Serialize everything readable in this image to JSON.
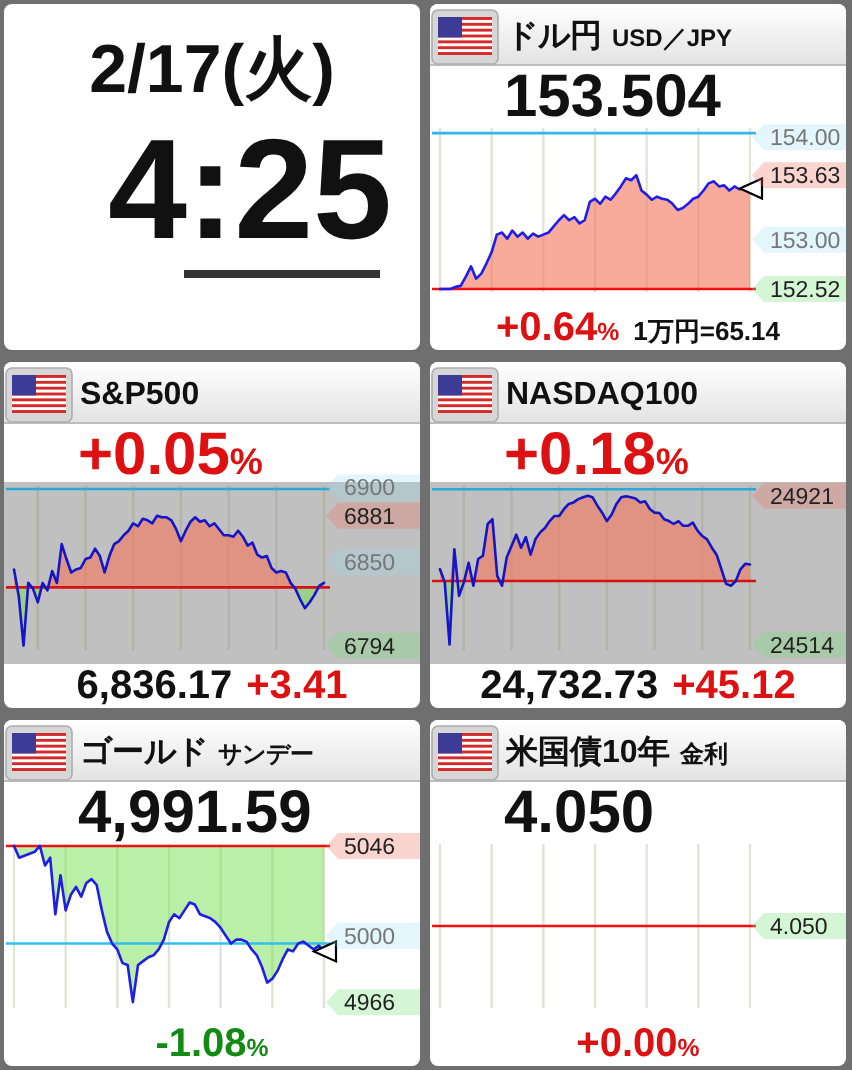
{
  "chart_data": [
    {
      "type": "other",
      "title": "2/17(火)",
      "subtitle": "4:25"
    },
    {
      "type": "line",
      "title": "ドル円",
      "subtitle": "USD／JPY",
      "annotations": [
        "153.504",
        "+0.64%",
        "1万円=65.14"
      ],
      "categories": [
        null,
        null,
        null,
        null,
        null,
        null,
        null,
        null,
        null,
        null,
        null,
        null,
        null,
        null,
        null,
        null,
        null,
        null,
        null,
        null,
        null,
        null,
        null,
        null,
        null,
        null,
        null,
        null,
        null,
        null,
        null,
        null,
        null,
        null,
        null,
        null,
        null,
        null,
        null,
        null,
        null,
        null,
        null,
        null,
        null,
        null,
        null,
        null,
        null,
        null,
        null,
        null,
        null,
        null,
        null,
        null,
        null,
        null,
        null,
        null,
        null
      ],
      "series": [
        {
          "color": "#1e1ee6",
          "values": [
            152.52,
            152.52,
            152.52,
            152.54,
            152.55,
            152.64,
            152.74,
            152.62,
            152.67,
            152.77,
            152.88,
            153.05,
            153.07,
            153.01,
            153.09,
            153.03,
            153.07,
            153.01,
            153.06,
            153.03,
            153.05,
            153.07,
            153.13,
            153.19,
            153.24,
            153.19,
            153.22,
            153.16,
            153.19,
            153.37,
            153.4,
            153.35,
            153.42,
            153.39,
            153.45,
            153.52,
            153.6,
            153.58,
            153.63,
            153.48,
            153.44,
            153.39,
            153.42,
            153.4,
            153.39,
            153.35,
            153.29,
            153.31,
            153.35,
            153.4,
            153.42,
            153.48,
            153.55,
            153.57,
            153.52,
            153.53,
            153.48,
            153.52,
            153.49,
            153.52,
            153.5
          ],
          "lower": [
            152.52,
            152.52,
            152.52,
            152.52,
            152.52,
            152.52,
            152.52,
            152.52,
            152.52,
            152.52,
            152.52,
            152.52,
            152.52,
            152.52,
            152.52,
            152.52,
            152.52,
            152.52,
            152.52,
            152.52,
            152.52,
            152.52,
            152.52,
            152.52,
            152.52,
            152.52,
            152.52,
            152.52,
            152.52,
            152.52,
            152.52,
            152.52,
            152.52,
            152.52,
            152.52,
            152.52,
            152.52,
            152.52,
            152.52,
            152.52,
            152.52,
            152.52,
            152.52,
            152.52,
            152.52,
            152.52,
            152.52,
            152.52,
            152.52,
            152.52,
            152.52,
            152.52,
            152.52,
            152.52,
            152.52,
            152.52,
            152.52,
            152.52,
            152.52,
            152.52,
            152.52
          ],
          "upper": [
            152.52,
            152.52,
            152.52,
            152.54,
            152.55,
            152.64,
            152.74,
            152.62,
            152.67,
            152.77,
            152.88,
            153.05,
            153.07,
            153.01,
            153.09,
            153.03,
            153.07,
            153.01,
            153.06,
            153.03,
            153.05,
            153.07,
            153.13,
            153.19,
            153.24,
            153.19,
            153.22,
            153.16,
            153.19,
            153.37,
            153.4,
            153.35,
            153.42,
            153.39,
            153.45,
            153.52,
            153.6,
            153.58,
            153.63,
            153.48,
            153.44,
            153.39,
            153.42,
            153.4,
            153.39,
            153.35,
            153.29,
            153.31,
            153.35,
            153.4,
            153.42,
            153.48,
            153.55,
            153.57,
            153.52,
            153.53,
            153.48,
            153.52,
            153.49,
            153.52,
            153.5
          ]
        },
        {
          "type": "scatter",
          "marker": "triangle",
          "color": "#000000",
          "values": [
            null,
            null,
            null,
            null,
            null,
            null,
            null,
            null,
            null,
            null,
            null,
            null,
            null,
            null,
            null,
            null,
            null,
            null,
            null,
            null,
            null,
            null,
            null,
            null,
            null,
            null,
            null,
            null,
            null,
            null,
            null,
            null,
            null,
            null,
            null,
            null,
            null,
            null,
            null,
            null,
            null,
            null,
            null,
            null,
            null,
            null,
            null,
            null,
            null,
            null,
            null,
            null,
            null,
            null,
            null,
            null,
            null,
            null,
            null,
            null,
            153.5
          ]
        }
      ],
      "ylim": [
        152.49,
        154.09
      ],
      "yticks": [
        {
          "value": 154,
          "label": "154.00"
        },
        153.63,
        {
          "value": 153,
          "label": "153.00"
        },
        152.52
      ],
      "ref_lines": [
        {
          "axis": "y",
          "value": 152.52,
          "color": "#f01010"
        },
        {
          "axis": "y",
          "value": 154.04,
          "color": "#30b8e8"
        }
      ],
      "grid": "x"
    },
    {
      "type": "line",
      "title": "S&P500",
      "annotations": [
        "+0.05%",
        "6,836.17",
        "+3.41"
      ],
      "categories": [
        null,
        null,
        null,
        null,
        null,
        null,
        null,
        null,
        null,
        null,
        null,
        null,
        null,
        null,
        null,
        null,
        null,
        null,
        null,
        null,
        null,
        null,
        null,
        null,
        null,
        null,
        null,
        null,
        null,
        null,
        null,
        null,
        null,
        null,
        null,
        null,
        null,
        null,
        null,
        null,
        null,
        null,
        null,
        null,
        null,
        null,
        null,
        null,
        null,
        null,
        null,
        null,
        null,
        null,
        null,
        null,
        null,
        null,
        null,
        null,
        null,
        null,
        null,
        null,
        null,
        null
      ],
      "series": [
        {
          "color": "#1515c8",
          "values": [
            6845,
            6827,
            6794,
            6836,
            6832,
            6823,
            6836,
            6831,
            6844,
            6836,
            6862,
            6852,
            6843,
            6845,
            6846,
            6852,
            6853,
            6859,
            6854,
            6843,
            6854,
            6862,
            6864,
            6868,
            6871,
            6876,
            6874,
            6879,
            6878,
            6876,
            6881,
            6880,
            6880,
            6878,
            6872,
            6864,
            6871,
            6877,
            6880,
            6877,
            6878,
            6874,
            6876,
            6872,
            6868,
            6868,
            6867,
            6871,
            6867,
            6861,
            6863,
            6855,
            6853,
            6854,
            6846,
            6843,
            6844,
            6843,
            6836,
            6832,
            6825,
            6819,
            6823,
            6828,
            6834,
            6836
          ],
          "lower": [
            6833,
            6827,
            6794,
            6833,
            6832,
            6823,
            6833,
            6831,
            6833,
            6833,
            6833,
            6833,
            6833,
            6833,
            6833,
            6833,
            6833,
            6833,
            6833,
            6833,
            6833,
            6833,
            6833,
            6833,
            6833,
            6833,
            6833,
            6833,
            6833,
            6833,
            6833,
            6833,
            6833,
            6833,
            6833,
            6833,
            6833,
            6833,
            6833,
            6833,
            6833,
            6833,
            6833,
            6833,
            6833,
            6833,
            6833,
            6833,
            6833,
            6833,
            6833,
            6833,
            6833,
            6833,
            6833,
            6833,
            6833,
            6833,
            6833,
            6832,
            6825,
            6819,
            6823,
            6828,
            6833,
            6833
          ],
          "upper": [
            6845,
            6833,
            6833,
            6836,
            6833,
            6833,
            6836,
            6833,
            6844,
            6836,
            6862,
            6852,
            6843,
            6845,
            6846,
            6852,
            6853,
            6859,
            6854,
            6843,
            6854,
            6862,
            6864,
            6868,
            6871,
            6876,
            6874,
            6879,
            6878,
            6876,
            6881,
            6880,
            6880,
            6878,
            6872,
            6864,
            6871,
            6877,
            6880,
            6877,
            6878,
            6874,
            6876,
            6872,
            6868,
            6868,
            6867,
            6871,
            6867,
            6861,
            6863,
            6855,
            6853,
            6854,
            6846,
            6843,
            6844,
            6843,
            6836,
            6833,
            6833,
            6833,
            6833,
            6833,
            6834,
            6836
          ]
        }
      ],
      "ylim": [
        6791,
        6901
      ],
      "yticks": [
        6900,
        6881,
        6850,
        6794
      ],
      "ref_lines": [
        {
          "axis": "y",
          "value": 6833,
          "color": "#d81010"
        },
        {
          "axis": "y",
          "value": 6899,
          "color": "#2aa8d8"
        }
      ],
      "grid": "x"
    },
    {
      "type": "line",
      "title": "NASDAQ100",
      "annotations": [
        "+0.18%",
        "24,732.73",
        "+45.12"
      ],
      "categories": [
        null,
        null,
        null,
        null,
        null,
        null,
        null,
        null,
        null,
        null,
        null,
        null,
        null,
        null,
        null,
        null,
        null,
        null,
        null,
        null,
        null,
        null,
        null,
        null,
        null,
        null,
        null,
        null,
        null,
        null,
        null,
        null,
        null,
        null,
        null,
        null,
        null,
        null,
        null,
        null,
        null,
        null,
        null,
        null,
        null,
        null,
        null,
        null,
        null,
        null,
        null,
        null,
        null,
        null,
        null,
        null,
        null,
        null,
        null,
        null,
        null,
        null,
        null,
        null,
        null,
        null
      ],
      "series": [
        {
          "color": "#1515c8",
          "values": [
            24720,
            24684,
            24514,
            24775,
            24647,
            24684,
            24738,
            24675,
            24748,
            24757,
            24844,
            24857,
            24702,
            24675,
            24753,
            24784,
            24815,
            24779,
            24808,
            24760,
            24802,
            24821,
            24833,
            24852,
            24866,
            24866,
            24885,
            24899,
            24903,
            24912,
            24917,
            24921,
            24917,
            24894,
            24875,
            24852,
            24870,
            24899,
            24917,
            24920,
            24917,
            24914,
            24903,
            24906,
            24885,
            24875,
            24874,
            24857,
            24852,
            24844,
            24852,
            24839,
            24839,
            24848,
            24826,
            24811,
            24802,
            24779,
            24760,
            24720,
            24680,
            24675,
            24687,
            24720,
            24735,
            24733
          ],
          "lower": [
            24688,
            24684,
            24514,
            24688,
            24647,
            24684,
            24688,
            24675,
            24688,
            24688,
            24688,
            24688,
            24688,
            24675,
            24688,
            24688,
            24688,
            24688,
            24688,
            24688,
            24688,
            24688,
            24688,
            24688,
            24688,
            24688,
            24688,
            24688,
            24688,
            24688,
            24688,
            24688,
            24688,
            24688,
            24688,
            24688,
            24688,
            24688,
            24688,
            24688,
            24688,
            24688,
            24688,
            24688,
            24688,
            24688,
            24688,
            24688,
            24688,
            24688,
            24688,
            24688,
            24688,
            24688,
            24688,
            24688,
            24688,
            24688,
            24688,
            24688,
            24680,
            24675,
            24687,
            24688,
            24688,
            24688
          ],
          "upper": [
            24720,
            24688,
            24688,
            24775,
            24688,
            24688,
            24738,
            24688,
            24748,
            24757,
            24844,
            24857,
            24702,
            24688,
            24753,
            24784,
            24815,
            24779,
            24808,
            24760,
            24802,
            24821,
            24833,
            24852,
            24866,
            24866,
            24885,
            24899,
            24903,
            24912,
            24917,
            24921,
            24917,
            24894,
            24875,
            24852,
            24870,
            24899,
            24917,
            24920,
            24917,
            24914,
            24903,
            24906,
            24885,
            24875,
            24874,
            24857,
            24852,
            24844,
            24852,
            24839,
            24839,
            24848,
            24826,
            24811,
            24802,
            24779,
            24760,
            24720,
            24688,
            24688,
            24688,
            24720,
            24735,
            24733
          ]
        }
      ],
      "ylim": [
        24499,
        24948
      ],
      "yticks": [
        24921,
        24514
      ],
      "ref_lines": [
        {
          "axis": "y",
          "value": 24688,
          "color": "#d81010"
        },
        {
          "axis": "y",
          "value": 24939,
          "color": "#2aa8d8"
        }
      ],
      "grid": "x"
    },
    {
      "type": "line",
      "title": "ゴールド",
      "subtitle": "サンデー",
      "annotations": [
        "4,991.59",
        "-1.08%"
      ],
      "categories": [
        null,
        null,
        null,
        null,
        null,
        null,
        null,
        null,
        null,
        null,
        null,
        null,
        null,
        null,
        null,
        null,
        null,
        null,
        null,
        null,
        null,
        null,
        null,
        null,
        null,
        null,
        null,
        null,
        null,
        null,
        null,
        null,
        null,
        null,
        null,
        null,
        null,
        null,
        null,
        null,
        null,
        null,
        null,
        null,
        null,
        null,
        null,
        null,
        null,
        null,
        null,
        null,
        null,
        null,
        null,
        null,
        null,
        null,
        null,
        null,
        null
      ],
      "series": [
        {
          "color": "#1e1ee6",
          "values": [
            5046,
            5040,
            5041,
            5042,
            5043,
            5046,
            5036,
            5040,
            5011,
            5031,
            5013,
            5021,
            5025,
            5020,
            5027,
            5029,
            5026,
            5013,
            5002,
            4996,
            4993,
            4986,
            4985,
            4966,
            4985,
            4987,
            4989,
            4990,
            4993,
            4998,
            5007,
            5011,
            5009,
            5013,
            5017,
            5016,
            5011,
            5010,
            5009,
            5007,
            5004,
            5000,
            4996,
            4998,
            4998,
            4997,
            4993,
            4990,
            4984,
            4976,
            4978,
            4982,
            4988,
            4993,
            4992,
            4996,
            4997,
            4995,
            4993,
            4995,
            4992
          ],
          "lower": [
            5046,
            5040,
            5041,
            5042,
            5043,
            5046,
            5036,
            5040,
            5011,
            5031,
            5013,
            5021,
            5025,
            5020,
            5027,
            5029,
            5026,
            5013,
            5002,
            4996,
            4993,
            4986,
            4985,
            4966,
            4985,
            4987,
            4989,
            4990,
            4993,
            4998,
            5007,
            5011,
            5009,
            5013,
            5017,
            5016,
            5011,
            5010,
            5009,
            5007,
            5004,
            5000,
            4996,
            4998,
            4998,
            4997,
            4993,
            4990,
            4984,
            4976,
            4978,
            4982,
            4988,
            4993,
            4992,
            4996,
            4997,
            4995,
            4993,
            4995,
            4992
          ],
          "upper": [
            5046,
            5046,
            5046,
            5046,
            5046,
            5046,
            5046,
            5046,
            5046,
            5046,
            5046,
            5046,
            5046,
            5046,
            5046,
            5046,
            5046,
            5046,
            5046,
            5046,
            5046,
            5046,
            5046,
            5046,
            5046,
            5046,
            5046,
            5046,
            5046,
            5046,
            5046,
            5046,
            5046,
            5046,
            5046,
            5046,
            5046,
            5046,
            5046,
            5046,
            5046,
            5046,
            5046,
            5046,
            5046,
            5046,
            5046,
            5046,
            5046,
            5046,
            5046,
            5046,
            5046,
            5046,
            5046,
            5046,
            5046,
            5046,
            5046,
            5046,
            5046
          ]
        },
        {
          "type": "scatter",
          "marker": "triangle",
          "color": "#000000",
          "values": [
            null,
            null,
            null,
            null,
            null,
            null,
            null,
            null,
            null,
            null,
            null,
            null,
            null,
            null,
            null,
            null,
            null,
            null,
            null,
            null,
            null,
            null,
            null,
            null,
            null,
            null,
            null,
            null,
            null,
            null,
            null,
            null,
            null,
            null,
            null,
            null,
            null,
            null,
            null,
            null,
            null,
            null,
            null,
            null,
            null,
            null,
            null,
            null,
            null,
            null,
            null,
            null,
            null,
            null,
            null,
            null,
            null,
            null,
            null,
            null,
            4992
          ]
        }
      ],
      "ylim": [
        4963,
        5047
      ],
      "yticks": [
        5046,
        5000,
        4966
      ],
      "ref_lines": [
        {
          "axis": "y",
          "value": 5046,
          "color": "#f01010"
        },
        {
          "axis": "y",
          "value": 4996,
          "color": "#30c0ee"
        }
      ],
      "grid": "x"
    },
    {
      "type": "other",
      "title": "米国債10年",
      "subtitle": "金利",
      "annotations": [
        "4.050",
        "4.050",
        "+0.00%"
      ]
    }
  ]
}
